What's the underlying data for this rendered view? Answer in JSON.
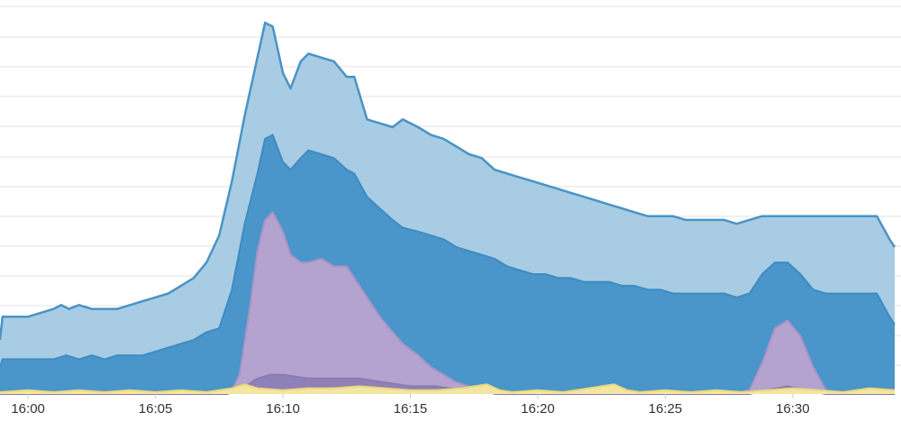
{
  "chart_data": {
    "type": "area",
    "stacked": false,
    "title": "",
    "xlabel": "",
    "ylabel": "",
    "grid": true,
    "y_tick_labels_visible": false,
    "x_ticks": [
      "16:00",
      "16:05",
      "16:10",
      "16:15",
      "16:20",
      "16:25",
      "16:30"
    ],
    "x_tick_minutes": [
      0,
      5,
      10,
      15,
      20,
      25,
      30
    ],
    "xlim_minutes": [
      -1.1,
      34.0
    ],
    "ylim": [
      0,
      100
    ],
    "series": [
      {
        "color": "#a7cce4",
        "stroke": "#4a93c6",
        "points": [
          [
            -1.1,
            14
          ],
          [
            -1.0,
            20
          ],
          [
            0.0,
            20
          ],
          [
            0.5,
            21
          ],
          [
            1.0,
            22
          ],
          [
            1.3,
            23
          ],
          [
            1.6,
            22
          ],
          [
            2.0,
            23
          ],
          [
            2.5,
            22
          ],
          [
            3.0,
            22
          ],
          [
            3.5,
            22
          ],
          [
            4.0,
            23
          ],
          [
            4.5,
            24
          ],
          [
            5.0,
            25
          ],
          [
            5.5,
            26
          ],
          [
            6.0,
            28
          ],
          [
            6.5,
            30
          ],
          [
            7.0,
            34
          ],
          [
            7.5,
            41
          ],
          [
            8.0,
            55
          ],
          [
            8.5,
            72
          ],
          [
            9.0,
            87
          ],
          [
            9.3,
            96
          ],
          [
            9.6,
            95
          ],
          [
            10.0,
            83
          ],
          [
            10.3,
            79
          ],
          [
            10.7,
            86
          ],
          [
            11.0,
            88
          ],
          [
            11.5,
            87
          ],
          [
            12.0,
            86
          ],
          [
            12.5,
            82
          ],
          [
            12.8,
            82
          ],
          [
            13.3,
            71
          ],
          [
            13.8,
            70
          ],
          [
            14.3,
            69
          ],
          [
            14.7,
            71
          ],
          [
            15.3,
            69
          ],
          [
            15.8,
            67
          ],
          [
            16.3,
            66
          ],
          [
            16.8,
            64
          ],
          [
            17.3,
            62
          ],
          [
            17.8,
            61
          ],
          [
            18.3,
            58
          ],
          [
            18.8,
            57
          ],
          [
            19.3,
            56
          ],
          [
            19.8,
            55
          ],
          [
            20.3,
            54
          ],
          [
            20.8,
            53
          ],
          [
            21.3,
            52
          ],
          [
            21.8,
            51
          ],
          [
            22.3,
            50
          ],
          [
            22.8,
            49
          ],
          [
            23.3,
            48
          ],
          [
            23.8,
            47
          ],
          [
            24.3,
            46
          ],
          [
            24.8,
            46
          ],
          [
            25.3,
            46
          ],
          [
            25.8,
            45
          ],
          [
            26.3,
            45
          ],
          [
            26.8,
            45
          ],
          [
            27.3,
            45
          ],
          [
            27.8,
            44
          ],
          [
            28.3,
            45
          ],
          [
            28.8,
            46
          ],
          [
            29.3,
            46
          ],
          [
            29.8,
            46
          ],
          [
            30.3,
            46
          ],
          [
            30.8,
            46
          ],
          [
            31.3,
            46
          ],
          [
            31.8,
            46
          ],
          [
            32.3,
            46
          ],
          [
            32.8,
            46
          ],
          [
            33.3,
            46
          ],
          [
            33.8,
            40
          ],
          [
            34.0,
            38
          ]
        ]
      },
      {
        "color": "#4a95c9",
        "stroke": "#3f8bc1",
        "points": [
          [
            -1.1,
            7
          ],
          [
            -1.0,
            9
          ],
          [
            0.0,
            9
          ],
          [
            0.5,
            9
          ],
          [
            1.0,
            9
          ],
          [
            1.5,
            10
          ],
          [
            2.0,
            9
          ],
          [
            2.5,
            10
          ],
          [
            3.0,
            9
          ],
          [
            3.5,
            10
          ],
          [
            4.0,
            10
          ],
          [
            4.5,
            10
          ],
          [
            5.0,
            11
          ],
          [
            5.5,
            12
          ],
          [
            6.0,
            13
          ],
          [
            6.5,
            14
          ],
          [
            7.0,
            16
          ],
          [
            7.5,
            17
          ],
          [
            8.0,
            27
          ],
          [
            8.5,
            44
          ],
          [
            9.0,
            57
          ],
          [
            9.3,
            66
          ],
          [
            9.6,
            67
          ],
          [
            10.0,
            60
          ],
          [
            10.3,
            58
          ],
          [
            10.7,
            61
          ],
          [
            11.0,
            63
          ],
          [
            11.5,
            62
          ],
          [
            12.0,
            61
          ],
          [
            12.5,
            58
          ],
          [
            12.8,
            57
          ],
          [
            13.3,
            51
          ],
          [
            13.8,
            48
          ],
          [
            14.3,
            45
          ],
          [
            14.7,
            43
          ],
          [
            15.3,
            42
          ],
          [
            15.8,
            41
          ],
          [
            16.3,
            40
          ],
          [
            16.8,
            38
          ],
          [
            17.3,
            37
          ],
          [
            17.8,
            36
          ],
          [
            18.3,
            35
          ],
          [
            18.8,
            33
          ],
          [
            19.3,
            32
          ],
          [
            19.8,
            31
          ],
          [
            20.3,
            31
          ],
          [
            20.8,
            30
          ],
          [
            21.3,
            30
          ],
          [
            21.8,
            29
          ],
          [
            22.3,
            29
          ],
          [
            22.8,
            29
          ],
          [
            23.3,
            28
          ],
          [
            23.8,
            28
          ],
          [
            24.3,
            27
          ],
          [
            24.8,
            27
          ],
          [
            25.3,
            26
          ],
          [
            25.8,
            26
          ],
          [
            26.3,
            26
          ],
          [
            26.8,
            26
          ],
          [
            27.3,
            26
          ],
          [
            27.8,
            25
          ],
          [
            28.3,
            26
          ],
          [
            28.8,
            31
          ],
          [
            29.3,
            34
          ],
          [
            29.8,
            34
          ],
          [
            30.3,
            31
          ],
          [
            30.8,
            27
          ],
          [
            31.3,
            26
          ],
          [
            31.8,
            26
          ],
          [
            32.3,
            26
          ],
          [
            32.8,
            26
          ],
          [
            33.3,
            26
          ],
          [
            33.8,
            20
          ],
          [
            34.0,
            18
          ]
        ]
      },
      {
        "color": "#b5a3cf",
        "stroke": "#a993c9",
        "points": [
          [
            -1.1,
            0
          ],
          [
            6.5,
            0
          ],
          [
            7.0,
            0
          ],
          [
            7.5,
            0
          ],
          [
            8.0,
            1
          ],
          [
            8.3,
            5
          ],
          [
            8.7,
            22
          ],
          [
            9.0,
            37
          ],
          [
            9.3,
            45
          ],
          [
            9.6,
            47
          ],
          [
            10.0,
            42
          ],
          [
            10.3,
            36
          ],
          [
            10.7,
            34
          ],
          [
            11.0,
            34
          ],
          [
            11.5,
            35
          ],
          [
            12.0,
            33
          ],
          [
            12.5,
            33
          ],
          [
            12.8,
            30
          ],
          [
            13.3,
            25
          ],
          [
            13.8,
            20
          ],
          [
            14.3,
            16
          ],
          [
            14.7,
            13
          ],
          [
            15.3,
            10
          ],
          [
            15.8,
            7
          ],
          [
            16.3,
            5
          ],
          [
            16.8,
            3
          ],
          [
            17.3,
            2
          ],
          [
            17.8,
            1
          ],
          [
            18.3,
            0
          ],
          [
            18.8,
            0
          ],
          [
            27.5,
            0
          ],
          [
            28.3,
            1
          ],
          [
            28.8,
            8
          ],
          [
            29.3,
            17
          ],
          [
            29.8,
            19
          ],
          [
            30.3,
            15
          ],
          [
            30.8,
            7
          ],
          [
            31.3,
            1
          ],
          [
            31.8,
            0
          ],
          [
            34.0,
            0
          ]
        ]
      },
      {
        "color": "#9080b8",
        "stroke": "#8a7ab3",
        "points": [
          [
            -1.1,
            0
          ],
          [
            7.8,
            0
          ],
          [
            8.3,
            1
          ],
          [
            9.0,
            4
          ],
          [
            9.5,
            5
          ],
          [
            10.0,
            5
          ],
          [
            11.0,
            4
          ],
          [
            12.0,
            4
          ],
          [
            13.0,
            4
          ],
          [
            14.0,
            3
          ],
          [
            15.0,
            2
          ],
          [
            16.0,
            2
          ],
          [
            17.0,
            1
          ],
          [
            18.0,
            0.5
          ],
          [
            18.5,
            0
          ],
          [
            28.3,
            0
          ],
          [
            29.0,
            1
          ],
          [
            29.8,
            2
          ],
          [
            30.5,
            1
          ],
          [
            31.3,
            0
          ],
          [
            34.0,
            0
          ]
        ]
      },
      {
        "color": "#f3e6a3",
        "stroke": "#ecd97c",
        "points": [
          [
            -1.1,
            0.5
          ],
          [
            0.0,
            1
          ],
          [
            1.0,
            0.5
          ],
          [
            2.0,
            1
          ],
          [
            3.0,
            0.5
          ],
          [
            4.0,
            1
          ],
          [
            5.0,
            0.5
          ],
          [
            6.0,
            1
          ],
          [
            7.0,
            0.5
          ],
          [
            8.0,
            1.5
          ],
          [
            8.5,
            2.5
          ],
          [
            9.0,
            1.5
          ],
          [
            10.0,
            1
          ],
          [
            11.0,
            1.5
          ],
          [
            12.0,
            1.5
          ],
          [
            13.0,
            2
          ],
          [
            14.0,
            1.5
          ],
          [
            15.0,
            1
          ],
          [
            16.0,
            1
          ],
          [
            17.0,
            1.5
          ],
          [
            18.0,
            2.5
          ],
          [
            18.5,
            1
          ],
          [
            19.0,
            0.5
          ],
          [
            20.0,
            1
          ],
          [
            21.0,
            0.5
          ],
          [
            22.0,
            1.5
          ],
          [
            23.0,
            2.5
          ],
          [
            23.5,
            1
          ],
          [
            24.0,
            0.5
          ],
          [
            25.0,
            1
          ],
          [
            26.0,
            0.5
          ],
          [
            27.0,
            1
          ],
          [
            28.0,
            0.5
          ],
          [
            29.0,
            1
          ],
          [
            30.0,
            1.5
          ],
          [
            31.0,
            1
          ],
          [
            32.0,
            0.5
          ],
          [
            33.0,
            1.5
          ],
          [
            34.0,
            1
          ]
        ]
      }
    ]
  }
}
